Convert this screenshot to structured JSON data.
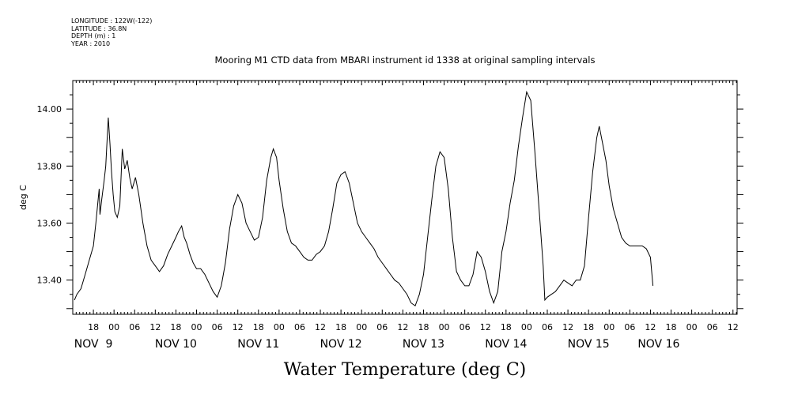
{
  "meta": {
    "longitude": "LONGITUDE : 122W(-122)",
    "latitude": "LATITUDE : 36.8N",
    "depth": "DEPTH (m) : 1",
    "year": "YEAR : 2010"
  },
  "chart_data": {
    "type": "line",
    "title": "Mooring M1 CTD data from MBARI instrument id 1338 at original sampling intervals",
    "xlabel": "Water Temperature (deg C)",
    "ylabel": "deg C",
    "ylim": [
      13.28,
      14.1
    ],
    "xlim": [
      8.5,
      16.55
    ],
    "x_unit": "day of November 2010 (fractional)",
    "yticks": [
      "13.40",
      "13.60",
      "13.80",
      "14.00"
    ],
    "ytick_values": [
      13.4,
      13.6,
      13.8,
      14.0
    ],
    "hour_ticks": [
      {
        "label": "18",
        "x": 8.75
      },
      {
        "label": "00",
        "x": 9.0
      },
      {
        "label": "06",
        "x": 9.25
      },
      {
        "label": "12",
        "x": 9.5
      },
      {
        "label": "18",
        "x": 9.75
      },
      {
        "label": "00",
        "x": 10.0
      },
      {
        "label": "06",
        "x": 10.25
      },
      {
        "label": "12",
        "x": 10.5
      },
      {
        "label": "18",
        "x": 10.75
      },
      {
        "label": "00",
        "x": 11.0
      },
      {
        "label": "06",
        "x": 11.25
      },
      {
        "label": "12",
        "x": 11.5
      },
      {
        "label": "18",
        "x": 11.75
      },
      {
        "label": "00",
        "x": 12.0
      },
      {
        "label": "06",
        "x": 12.25
      },
      {
        "label": "12",
        "x": 12.5
      },
      {
        "label": "18",
        "x": 12.75
      },
      {
        "label": "00",
        "x": 13.0
      },
      {
        "label": "06",
        "x": 13.25
      },
      {
        "label": "12",
        "x": 13.5
      },
      {
        "label": "18",
        "x": 13.75
      },
      {
        "label": "00",
        "x": 14.0
      },
      {
        "label": "06",
        "x": 14.25
      },
      {
        "label": "12",
        "x": 14.5
      },
      {
        "label": "18",
        "x": 14.75
      },
      {
        "label": "00",
        "x": 15.0
      },
      {
        "label": "06",
        "x": 15.25
      },
      {
        "label": "12",
        "x": 15.5
      },
      {
        "label": "18",
        "x": 15.75
      },
      {
        "label": "00",
        "x": 16.0
      },
      {
        "label": "06",
        "x": 16.25
      },
      {
        "label": "12",
        "x": 16.5
      }
    ],
    "day_labels": [
      {
        "label": "NOV  9",
        "x": 8.75
      },
      {
        "label": "NOV 10",
        "x": 9.75
      },
      {
        "label": "NOV 11",
        "x": 10.75
      },
      {
        "label": "NOV 12",
        "x": 11.75
      },
      {
        "label": "NOV 13",
        "x": 12.75
      },
      {
        "label": "NOV 14",
        "x": 13.75
      },
      {
        "label": "NOV 15",
        "x": 14.75
      },
      {
        "label": "NOV 16",
        "x": 15.6
      }
    ],
    "series": [
      {
        "points": [
          [
            8.52,
            13.33
          ],
          [
            8.55,
            13.35
          ],
          [
            8.6,
            13.37
          ],
          [
            8.65,
            13.42
          ],
          [
            8.7,
            13.47
          ],
          [
            8.75,
            13.52
          ],
          [
            8.78,
            13.6
          ],
          [
            8.8,
            13.66
          ],
          [
            8.82,
            13.72
          ],
          [
            8.83,
            13.63
          ],
          [
            8.85,
            13.68
          ],
          [
            8.88,
            13.75
          ],
          [
            8.9,
            13.8
          ],
          [
            8.93,
            13.97
          ],
          [
            8.95,
            13.88
          ],
          [
            8.97,
            13.78
          ],
          [
            8.99,
            13.7
          ],
          [
            9.01,
            13.64
          ],
          [
            9.04,
            13.62
          ],
          [
            9.07,
            13.66
          ],
          [
            9.1,
            13.86
          ],
          [
            9.13,
            13.79
          ],
          [
            9.16,
            13.82
          ],
          [
            9.19,
            13.76
          ],
          [
            9.22,
            13.72
          ],
          [
            9.26,
            13.76
          ],
          [
            9.3,
            13.7
          ],
          [
            9.35,
            13.6
          ],
          [
            9.4,
            13.52
          ],
          [
            9.45,
            13.47
          ],
          [
            9.5,
            13.45
          ],
          [
            9.55,
            13.43
          ],
          [
            9.6,
            13.45
          ],
          [
            9.65,
            13.49
          ],
          [
            9.7,
            13.52
          ],
          [
            9.75,
            13.55
          ],
          [
            9.78,
            13.57
          ],
          [
            9.82,
            13.59
          ],
          [
            9.85,
            13.55
          ],
          [
            9.88,
            13.53
          ],
          [
            9.92,
            13.49
          ],
          [
            9.96,
            13.46
          ],
          [
            10.0,
            13.44
          ],
          [
            10.05,
            13.44
          ],
          [
            10.1,
            13.42
          ],
          [
            10.15,
            13.39
          ],
          [
            10.2,
            13.36
          ],
          [
            10.25,
            13.34
          ],
          [
            10.3,
            13.38
          ],
          [
            10.35,
            13.46
          ],
          [
            10.4,
            13.58
          ],
          [
            10.45,
            13.66
          ],
          [
            10.5,
            13.7
          ],
          [
            10.55,
            13.67
          ],
          [
            10.6,
            13.6
          ],
          [
            10.65,
            13.57
          ],
          [
            10.7,
            13.54
          ],
          [
            10.75,
            13.55
          ],
          [
            10.8,
            13.62
          ],
          [
            10.85,
            13.75
          ],
          [
            10.9,
            13.83
          ],
          [
            10.93,
            13.86
          ],
          [
            10.97,
            13.83
          ],
          [
            11.0,
            13.75
          ],
          [
            11.05,
            13.65
          ],
          [
            11.1,
            13.57
          ],
          [
            11.15,
            13.53
          ],
          [
            11.2,
            13.52
          ],
          [
            11.25,
            13.5
          ],
          [
            11.3,
            13.48
          ],
          [
            11.35,
            13.47
          ],
          [
            11.4,
            13.47
          ],
          [
            11.45,
            13.49
          ],
          [
            11.5,
            13.5
          ],
          [
            11.55,
            13.52
          ],
          [
            11.6,
            13.57
          ],
          [
            11.65,
            13.65
          ],
          [
            11.7,
            13.74
          ],
          [
            11.75,
            13.77
          ],
          [
            11.8,
            13.78
          ],
          [
            11.85,
            13.74
          ],
          [
            11.9,
            13.67
          ],
          [
            11.95,
            13.6
          ],
          [
            12.0,
            13.57
          ],
          [
            12.05,
            13.55
          ],
          [
            12.1,
            13.53
          ],
          [
            12.15,
            13.51
          ],
          [
            12.2,
            13.48
          ],
          [
            12.25,
            13.46
          ],
          [
            12.3,
            13.44
          ],
          [
            12.35,
            13.42
          ],
          [
            12.4,
            13.4
          ],
          [
            12.45,
            13.39
          ],
          [
            12.5,
            13.37
          ],
          [
            12.55,
            13.35
          ],
          [
            12.6,
            13.32
          ],
          [
            12.65,
            13.31
          ],
          [
            12.7,
            13.35
          ],
          [
            12.75,
            13.42
          ],
          [
            12.8,
            13.55
          ],
          [
            12.85,
            13.68
          ],
          [
            12.9,
            13.8
          ],
          [
            12.95,
            13.85
          ],
          [
            13.0,
            13.83
          ],
          [
            13.05,
            13.72
          ],
          [
            13.1,
            13.55
          ],
          [
            13.15,
            13.43
          ],
          [
            13.2,
            13.4
          ],
          [
            13.25,
            13.38
          ],
          [
            13.3,
            13.38
          ],
          [
            13.35,
            13.42
          ],
          [
            13.4,
            13.5
          ],
          [
            13.45,
            13.48
          ],
          [
            13.5,
            13.43
          ],
          [
            13.55,
            13.36
          ],
          [
            13.6,
            13.32
          ],
          [
            13.65,
            13.36
          ],
          [
            13.7,
            13.5
          ],
          [
            13.75,
            13.57
          ],
          [
            13.8,
            13.67
          ],
          [
            13.85,
            13.75
          ],
          [
            13.9,
            13.87
          ],
          [
            13.95,
            13.97
          ],
          [
            14.0,
            14.06
          ],
          [
            14.05,
            14.03
          ],
          [
            14.1,
            13.85
          ],
          [
            14.15,
            13.65
          ],
          [
            14.2,
            13.45
          ],
          [
            14.22,
            13.33
          ],
          [
            14.25,
            13.34
          ],
          [
            14.3,
            13.35
          ],
          [
            14.35,
            13.36
          ],
          [
            14.4,
            13.38
          ],
          [
            14.45,
            13.4
          ],
          [
            14.5,
            13.39
          ],
          [
            14.55,
            13.38
          ],
          [
            14.6,
            13.4
          ],
          [
            14.65,
            13.4
          ],
          [
            14.7,
            13.45
          ],
          [
            14.75,
            13.62
          ],
          [
            14.8,
            13.78
          ],
          [
            14.85,
            13.9
          ],
          [
            14.88,
            13.94
          ],
          [
            14.92,
            13.88
          ],
          [
            14.96,
            13.82
          ],
          [
            15.0,
            13.73
          ],
          [
            15.05,
            13.65
          ],
          [
            15.1,
            13.6
          ],
          [
            15.15,
            13.55
          ],
          [
            15.2,
            13.53
          ],
          [
            15.25,
            13.52
          ],
          [
            15.3,
            13.52
          ],
          [
            15.35,
            13.52
          ],
          [
            15.4,
            13.52
          ],
          [
            15.45,
            13.51
          ],
          [
            15.5,
            13.48
          ],
          [
            15.53,
            13.38
          ]
        ]
      }
    ]
  }
}
